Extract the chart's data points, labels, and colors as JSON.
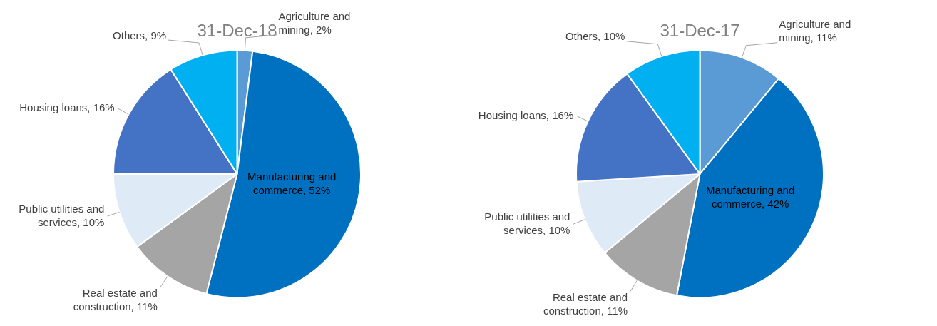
{
  "chart_data": [
    {
      "type": "pie",
      "title": "31-Dec-18",
      "categories": [
        "Agriculture and mining",
        "Manufacturing and commerce",
        "Real estate and construction",
        "Public utilities and services",
        "Housing loans",
        "Others"
      ],
      "values": [
        2,
        52,
        11,
        10,
        16,
        9
      ],
      "value_labels": [
        "2%",
        "52%",
        "11%",
        "10%",
        "16%",
        "9%"
      ],
      "colors": [
        "#5b9bd5",
        "#0070c0",
        "#a5a5a5",
        "#deebf7",
        "#4472c4",
        "#00b0f0"
      ]
    },
    {
      "type": "pie",
      "title": "31-Dec-17",
      "categories": [
        "Agriculture and mining",
        "Manufacturing and commerce",
        "Real estate and construction",
        "Public utilities and services",
        "Housing loans",
        "Others"
      ],
      "values": [
        11,
        42,
        11,
        10,
        16,
        10
      ],
      "value_labels": [
        "11%",
        "42%",
        "11%",
        "10%",
        "16%",
        "10%"
      ],
      "colors": [
        "#5b9bd5",
        "#0070c0",
        "#a5a5a5",
        "#deebf7",
        "#4472c4",
        "#00b0f0"
      ]
    }
  ]
}
